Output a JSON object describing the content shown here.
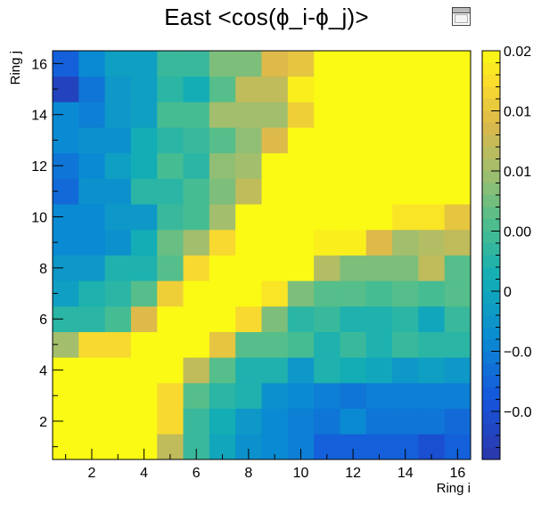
{
  "title": "East <cos(ϕ_i-ϕ_j)>",
  "chart_data": {
    "type": "heatmap",
    "title": "East <cos(ϕ_i-ϕ_j)>",
    "xlabel": "Ring i",
    "ylabel": "Ring j",
    "x_range": [
      0.5,
      16.5
    ],
    "y_range": [
      0.5,
      16.5
    ],
    "x_ticks": [
      2,
      4,
      6,
      8,
      10,
      12,
      14,
      16
    ],
    "y_ticks": [
      2,
      4,
      6,
      8,
      10,
      12,
      14,
      16
    ],
    "color_range": [
      -0.014,
      0.02
    ],
    "colorbar_tick_labels": [
      "0.02",
      "0.01",
      "0.01",
      "0.00",
      "0",
      "−0.0",
      "−0.0",
      "−0.0"
    ],
    "colorbar_tick_values": [
      0.02,
      0.015,
      0.01,
      0.005,
      0.0,
      -0.005,
      -0.01,
      -0.015
    ],
    "cells_row_order": "rows listed from j=1 (bottom) to j=16 (top); columns i=1..16",
    "values": [
      [
        0.02,
        0.02,
        0.02,
        0.02,
        0.012,
        0.004,
        0.0,
        -0.003,
        -0.004,
        -0.005,
        -0.008,
        -0.008,
        -0.008,
        -0.008,
        -0.01,
        -0.008
      ],
      [
        0.02,
        0.02,
        0.02,
        0.02,
        0.017,
        0.004,
        0.001,
        -0.002,
        -0.004,
        -0.005,
        -0.006,
        -0.004,
        -0.006,
        -0.006,
        -0.006,
        -0.007
      ],
      [
        0.02,
        0.02,
        0.02,
        0.02,
        0.017,
        0.006,
        0.003,
        0.002,
        -0.003,
        -0.004,
        -0.005,
        -0.006,
        -0.005,
        -0.005,
        -0.005,
        -0.005
      ],
      [
        0.02,
        0.02,
        0.02,
        0.02,
        0.02,
        0.012,
        0.006,
        0.002,
        0.002,
        -0.002,
        0.002,
        0.001,
        0.0,
        -0.002,
        -0.001,
        -0.002
      ],
      [
        0.01,
        0.017,
        0.017,
        0.02,
        0.02,
        0.02,
        0.015,
        0.006,
        0.006,
        0.005,
        0.002,
        0.004,
        0.002,
        0.004,
        0.003,
        0.003
      ],
      [
        0.003,
        0.003,
        0.005,
        0.014,
        0.02,
        0.02,
        0.02,
        0.017,
        0.008,
        0.003,
        0.004,
        0.002,
        0.002,
        0.003,
        0.0,
        0.004
      ],
      [
        -0.001,
        0.002,
        0.003,
        0.006,
        0.016,
        0.02,
        0.02,
        0.02,
        0.018,
        0.008,
        0.006,
        0.006,
        0.005,
        0.006,
        0.005,
        0.006
      ],
      [
        -0.002,
        -0.002,
        0.002,
        0.002,
        0.006,
        0.017,
        0.02,
        0.02,
        0.02,
        0.02,
        0.011,
        0.008,
        0.008,
        0.008,
        0.012,
        0.006
      ],
      [
        -0.004,
        -0.004,
        -0.003,
        0.001,
        0.007,
        0.01,
        0.017,
        0.02,
        0.02,
        0.02,
        0.019,
        0.019,
        0.014,
        0.01,
        0.011,
        0.012
      ],
      [
        -0.004,
        -0.004,
        -0.002,
        -0.002,
        0.004,
        0.005,
        0.01,
        0.02,
        0.02,
        0.02,
        0.02,
        0.02,
        0.02,
        0.018,
        0.018,
        0.015
      ],
      [
        -0.007,
        -0.003,
        -0.003,
        0.003,
        0.003,
        0.005,
        0.008,
        0.012,
        0.02,
        0.02,
        0.02,
        0.02,
        0.02,
        0.02,
        0.02,
        0.02
      ],
      [
        -0.006,
        -0.004,
        -0.001,
        0.001,
        0.005,
        0.003,
        0.009,
        0.01,
        0.02,
        0.02,
        0.02,
        0.02,
        0.02,
        0.02,
        0.02,
        0.02
      ],
      [
        -0.004,
        -0.003,
        -0.003,
        0.001,
        0.003,
        0.004,
        0.006,
        0.009,
        0.014,
        0.02,
        0.02,
        0.02,
        0.02,
        0.02,
        0.02,
        0.02
      ],
      [
        -0.004,
        -0.005,
        -0.002,
        -0.001,
        0.005,
        0.005,
        0.01,
        0.01,
        0.01,
        0.016,
        0.02,
        0.02,
        0.02,
        0.02,
        0.02,
        0.02
      ],
      [
        -0.012,
        -0.006,
        -0.002,
        -0.001,
        0.003,
        0.001,
        0.006,
        0.012,
        0.012,
        0.019,
        0.02,
        0.02,
        0.02,
        0.02,
        0.02,
        0.02
      ],
      [
        -0.008,
        -0.004,
        -0.001,
        -0.001,
        0.004,
        0.004,
        0.008,
        0.008,
        0.014,
        0.015,
        0.02,
        0.02,
        0.02,
        0.02,
        0.02,
        0.02
      ]
    ]
  }
}
